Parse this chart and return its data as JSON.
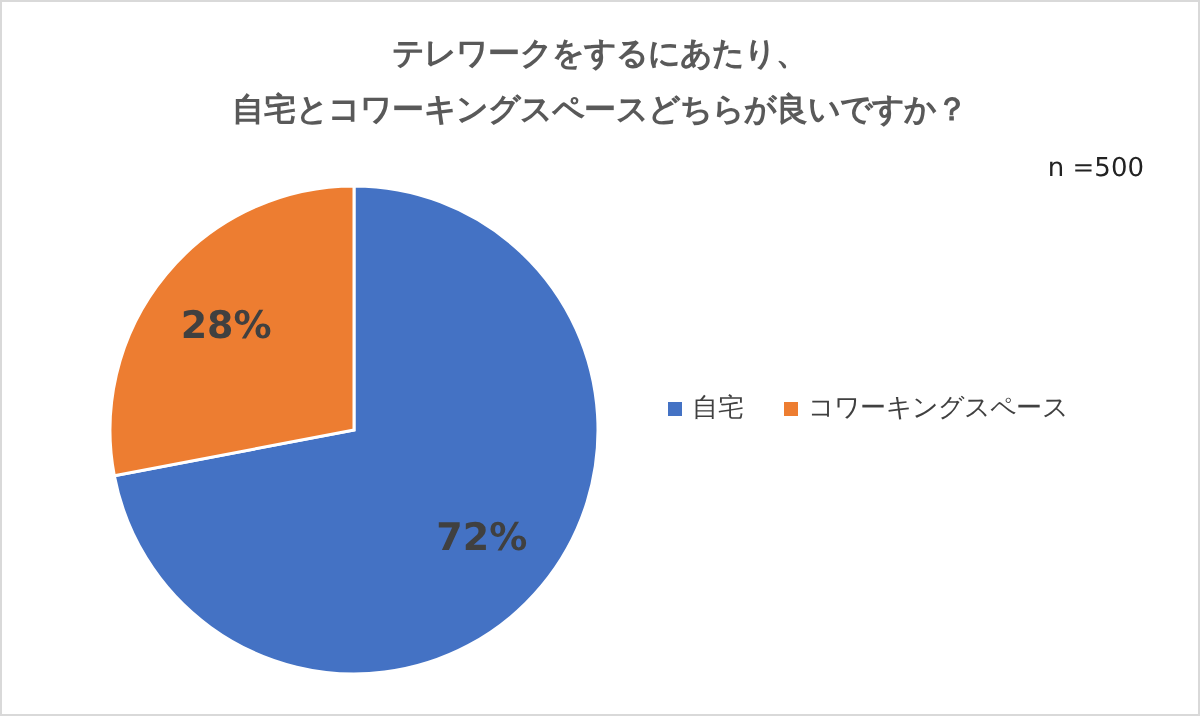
{
  "chart_data": {
    "type": "pie",
    "title": "テレワークをするにあたり、",
    "subtitle": "自宅とコワーキングスペースどちらが良いですか？",
    "categories": [
      "自宅",
      "コワーキングスペース"
    ],
    "values": [
      72,
      28
    ],
    "colors": [
      "#4472c4",
      "#ed7d31"
    ],
    "value_labels": [
      "72%",
      "28%"
    ],
    "legend": "right",
    "annotations": [
      "n =500"
    ]
  }
}
